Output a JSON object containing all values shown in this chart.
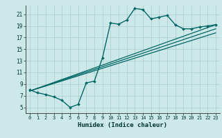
{
  "title": "",
  "xlabel": "Humidex (Indice chaleur)",
  "background_color": "#cce8e8",
  "grid_color": "#aacccc",
  "line_color": "#006666",
  "xlim": [
    -0.5,
    23.5
  ],
  "ylim": [
    4.0,
    22.5
  ],
  "xticks": [
    0,
    1,
    2,
    3,
    4,
    5,
    6,
    7,
    8,
    9,
    10,
    11,
    12,
    13,
    14,
    15,
    16,
    17,
    18,
    19,
    20,
    21,
    22,
    23
  ],
  "yticks": [
    5,
    7,
    9,
    11,
    13,
    15,
    17,
    19,
    21
  ],
  "curve1_x": [
    0,
    1,
    2,
    3,
    4,
    5,
    6,
    7,
    8,
    9,
    10,
    11,
    12,
    13,
    14,
    15,
    16,
    17,
    18,
    19,
    20,
    21,
    22,
    23
  ],
  "curve1_y": [
    8.0,
    7.5,
    7.2,
    6.8,
    6.2,
    5.0,
    5.5,
    9.2,
    9.5,
    13.5,
    19.5,
    19.3,
    20.0,
    22.0,
    21.8,
    20.2,
    20.5,
    20.8,
    19.2,
    18.5,
    18.5,
    18.8,
    19.0,
    19.2
  ],
  "line1_x": [
    0,
    23
  ],
  "line1_y": [
    7.8,
    19.2
  ],
  "line2_x": [
    0,
    23
  ],
  "line2_y": [
    7.8,
    17.8
  ],
  "line3_x": [
    0,
    23
  ],
  "line3_y": [
    7.8,
    18.5
  ]
}
